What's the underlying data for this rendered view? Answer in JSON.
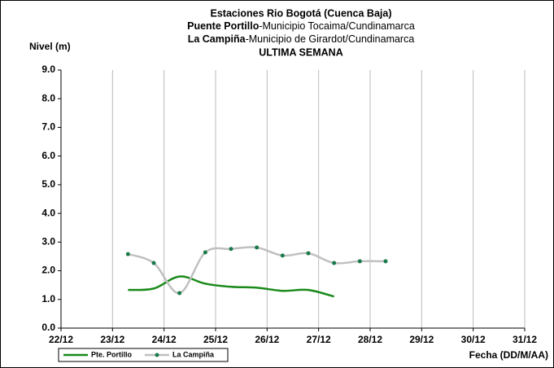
{
  "chart_data": {
    "type": "line",
    "title": "Estaciones Rio Bogotá (Cuenca Baja)",
    "subtitles": [
      {
        "bold": "Puente Portillo",
        "rest": "-Municipio Tocaima/Cundinamarca"
      },
      {
        "bold": "La Campiña",
        "rest": "-Municipio de Girardot/Cundinamarca"
      }
    ],
    "period": "ULTIMA SEMANA",
    "y_label": "Nivel (m)",
    "x_label": "Fecha (DD/M/AA)",
    "xlim": [
      22,
      31
    ],
    "xticks": [
      {
        "value": 22,
        "label": "22/12"
      },
      {
        "value": 23,
        "label": "23/12"
      },
      {
        "value": 24,
        "label": "24/12"
      },
      {
        "value": 25,
        "label": "25/12"
      },
      {
        "value": 26,
        "label": "26/12"
      },
      {
        "value": 27,
        "label": "27/12"
      },
      {
        "value": 28,
        "label": "28/12"
      },
      {
        "value": 29,
        "label": "29/12"
      },
      {
        "value": 30,
        "label": "30/12"
      },
      {
        "value": 31,
        "label": "31/12"
      }
    ],
    "ylim": [
      0,
      9
    ],
    "yticks": [
      {
        "value": 0,
        "label": "0.0"
      },
      {
        "value": 1,
        "label": "1.0"
      },
      {
        "value": 2,
        "label": "2.0"
      },
      {
        "value": 3,
        "label": "3.0"
      },
      {
        "value": 4,
        "label": "4.0"
      },
      {
        "value": 5,
        "label": "5.0"
      },
      {
        "value": 6,
        "label": "6.0"
      },
      {
        "value": 7,
        "label": "7.0"
      },
      {
        "value": 8,
        "label": "8.0"
      },
      {
        "value": 9,
        "label": "9.0"
      }
    ],
    "grid": true,
    "series": [
      {
        "name": "Pte. Portillo",
        "color": "#1a8a1a",
        "markers": false,
        "x": [
          23.3,
          23.8,
          24.3,
          24.8,
          25.3,
          25.8,
          26.3,
          26.8,
          27.3
        ],
        "values": [
          1.33,
          1.38,
          1.8,
          1.55,
          1.44,
          1.41,
          1.3,
          1.33,
          1.1
        ]
      },
      {
        "name": "La Campiña",
        "color": "#c0c0c0",
        "marker_color": "#1a7a4a",
        "markers": true,
        "x": [
          23.3,
          23.8,
          24.3,
          24.8,
          25.3,
          25.8,
          26.3,
          26.8,
          27.3,
          27.8,
          28.3
        ],
        "values": [
          2.58,
          2.27,
          1.22,
          2.64,
          2.76,
          2.81,
          2.53,
          2.61,
          2.27,
          2.33,
          2.33
        ]
      }
    ]
  }
}
